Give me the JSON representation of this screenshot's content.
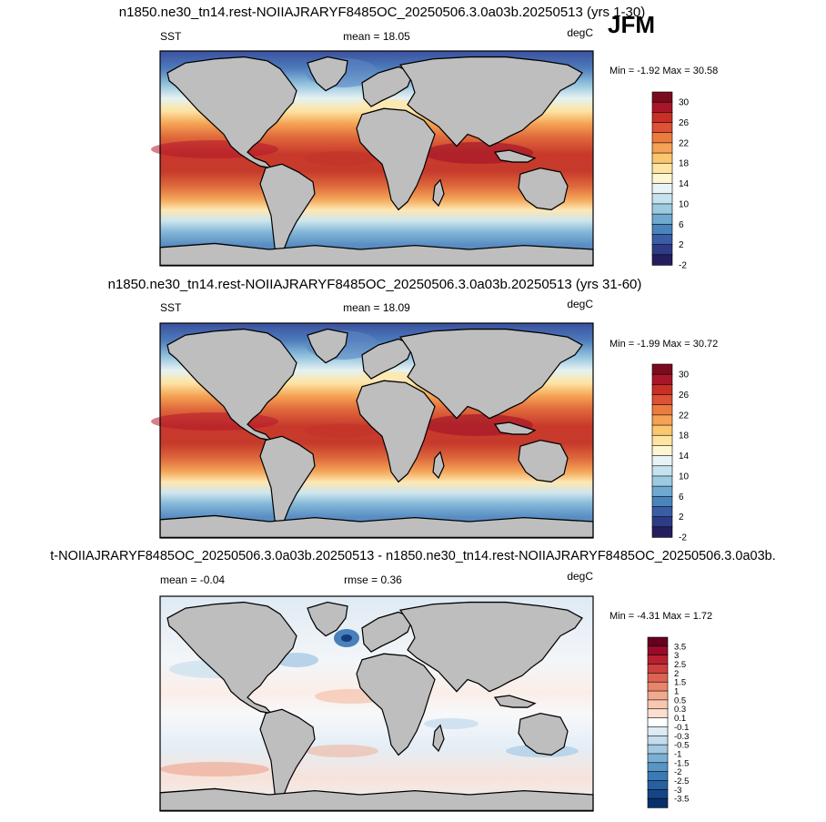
{
  "season": "JFM",
  "chart_data": [
    {
      "type": "heatmap",
      "title": "n1850.ne30_tn14.rest-NOIIAJRARYF8485OC_20250506.3.0a03b.20250513 (yrs 1-30)",
      "left_label": "SST",
      "center_label": "mean =  18.05",
      "units": "degC",
      "minmax": "Min =  -1.92 Max =  30.58",
      "min": -1.92,
      "max": 30.58,
      "mean": 18.05,
      "colorbar": {
        "tick_labels": [
          "30",
          "26",
          "22",
          "18",
          "14",
          "10",
          "6",
          "2",
          "-2"
        ],
        "colors": [
          "#7a0b1e",
          "#a8162a",
          "#c72f27",
          "#dd5135",
          "#ec7b3e",
          "#f6a153",
          "#fbc66e",
          "#fde4a1",
          "#fef6d0",
          "#e8f3f7",
          "#c6e2ee",
          "#9ccbe1",
          "#6fa9d0",
          "#4a84bd",
          "#3a5da6",
          "#2e3b86",
          "#241e5c"
        ]
      }
    },
    {
      "type": "heatmap",
      "title": "n1850.ne30_tn14.rest-NOIIAJRARYF8485OC_20250506.3.0a03b.20250513 (yrs 31-60)",
      "left_label": "SST",
      "center_label": "mean =  18.09",
      "units": "degC",
      "minmax": "Min =  -1.99 Max =  30.72",
      "min": -1.99,
      "max": 30.72,
      "mean": 18.09,
      "colorbar": {
        "tick_labels": [
          "30",
          "26",
          "22",
          "18",
          "14",
          "10",
          "6",
          "2",
          "-2"
        ],
        "colors": [
          "#7a0b1e",
          "#a8162a",
          "#c72f27",
          "#dd5135",
          "#ec7b3e",
          "#f6a153",
          "#fbc66e",
          "#fde4a1",
          "#fef6d0",
          "#e8f3f7",
          "#c6e2ee",
          "#9ccbe1",
          "#6fa9d0",
          "#4a84bd",
          "#3a5da6",
          "#2e3b86",
          "#241e5c"
        ]
      }
    },
    {
      "type": "heatmap",
      "title": "t-NOIIAJRARYF8485OC_20250506.3.0a03b.20250513 - n1850.ne30_tn14.rest-NOIIAJRARYF8485OC_20250506.3.0a03b.",
      "left_label": "mean =  -0.04",
      "center_label": "rmse =   0.36",
      "units": "degC",
      "minmax": "Min =  -4.31 Max =   1.72",
      "min": -4.31,
      "max": 1.72,
      "mean": -0.04,
      "rmse": 0.36,
      "colorbar": {
        "tick_labels": [
          "3.5",
          "3",
          "2.5",
          "2",
          "1.5",
          "1",
          "0.5",
          "0.3",
          "0.1",
          "-0.1",
          "-0.3",
          "-0.5",
          "-1",
          "-1.5",
          "-2",
          "-2.5",
          "-3",
          "-3.5"
        ],
        "colors": [
          "#67001f",
          "#980c2a",
          "#b8202f",
          "#cc3f3c",
          "#dc6352",
          "#e8856a",
          "#f2a98d",
          "#f8c7b0",
          "#fcdfd1",
          "#ffffff",
          "#deebf4",
          "#c5dcec",
          "#a3c8e1",
          "#7bb0d4",
          "#5796c5",
          "#3a7ab5",
          "#2660a0",
          "#164587",
          "#08306b"
        ]
      }
    }
  ]
}
